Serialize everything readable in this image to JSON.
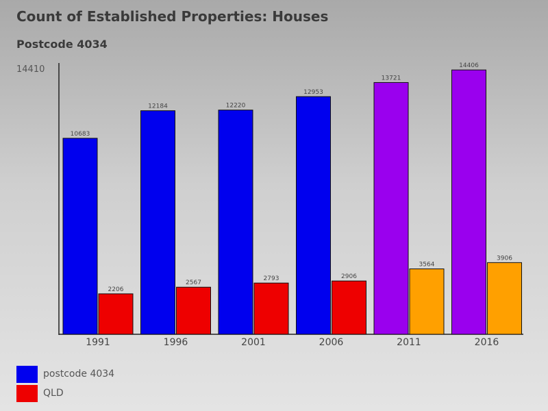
{
  "chart_data": {
    "type": "bar",
    "title": "Count of Established Properties: Houses",
    "subtitle": "Postcode 4034",
    "categories": [
      "1991",
      "1996",
      "2001",
      "2006",
      "2011",
      "2016"
    ],
    "series": [
      {
        "name": "postcode 4034",
        "values": [
          10683,
          12184,
          12220,
          12953,
          13721,
          14406
        ],
        "colors": [
          "#0000ee",
          "#0000ee",
          "#0000ee",
          "#0000ee",
          "#9a00ee",
          "#9a00ee"
        ]
      },
      {
        "name": "QLD",
        "values": [
          2206,
          2567,
          2793,
          2906,
          3564,
          3906
        ],
        "colors": [
          "#ee0000",
          "#ee0000",
          "#ee0000",
          "#ee0000",
          "#ffa000",
          "#ffa000"
        ]
      }
    ],
    "ymax_label": "14410",
    "ylim": [
      0,
      14410
    ],
    "legend": [
      {
        "label": "postcode 4034",
        "color": "#0000ee"
      },
      {
        "label": "QLD",
        "color": "#ee0000"
      }
    ]
  }
}
